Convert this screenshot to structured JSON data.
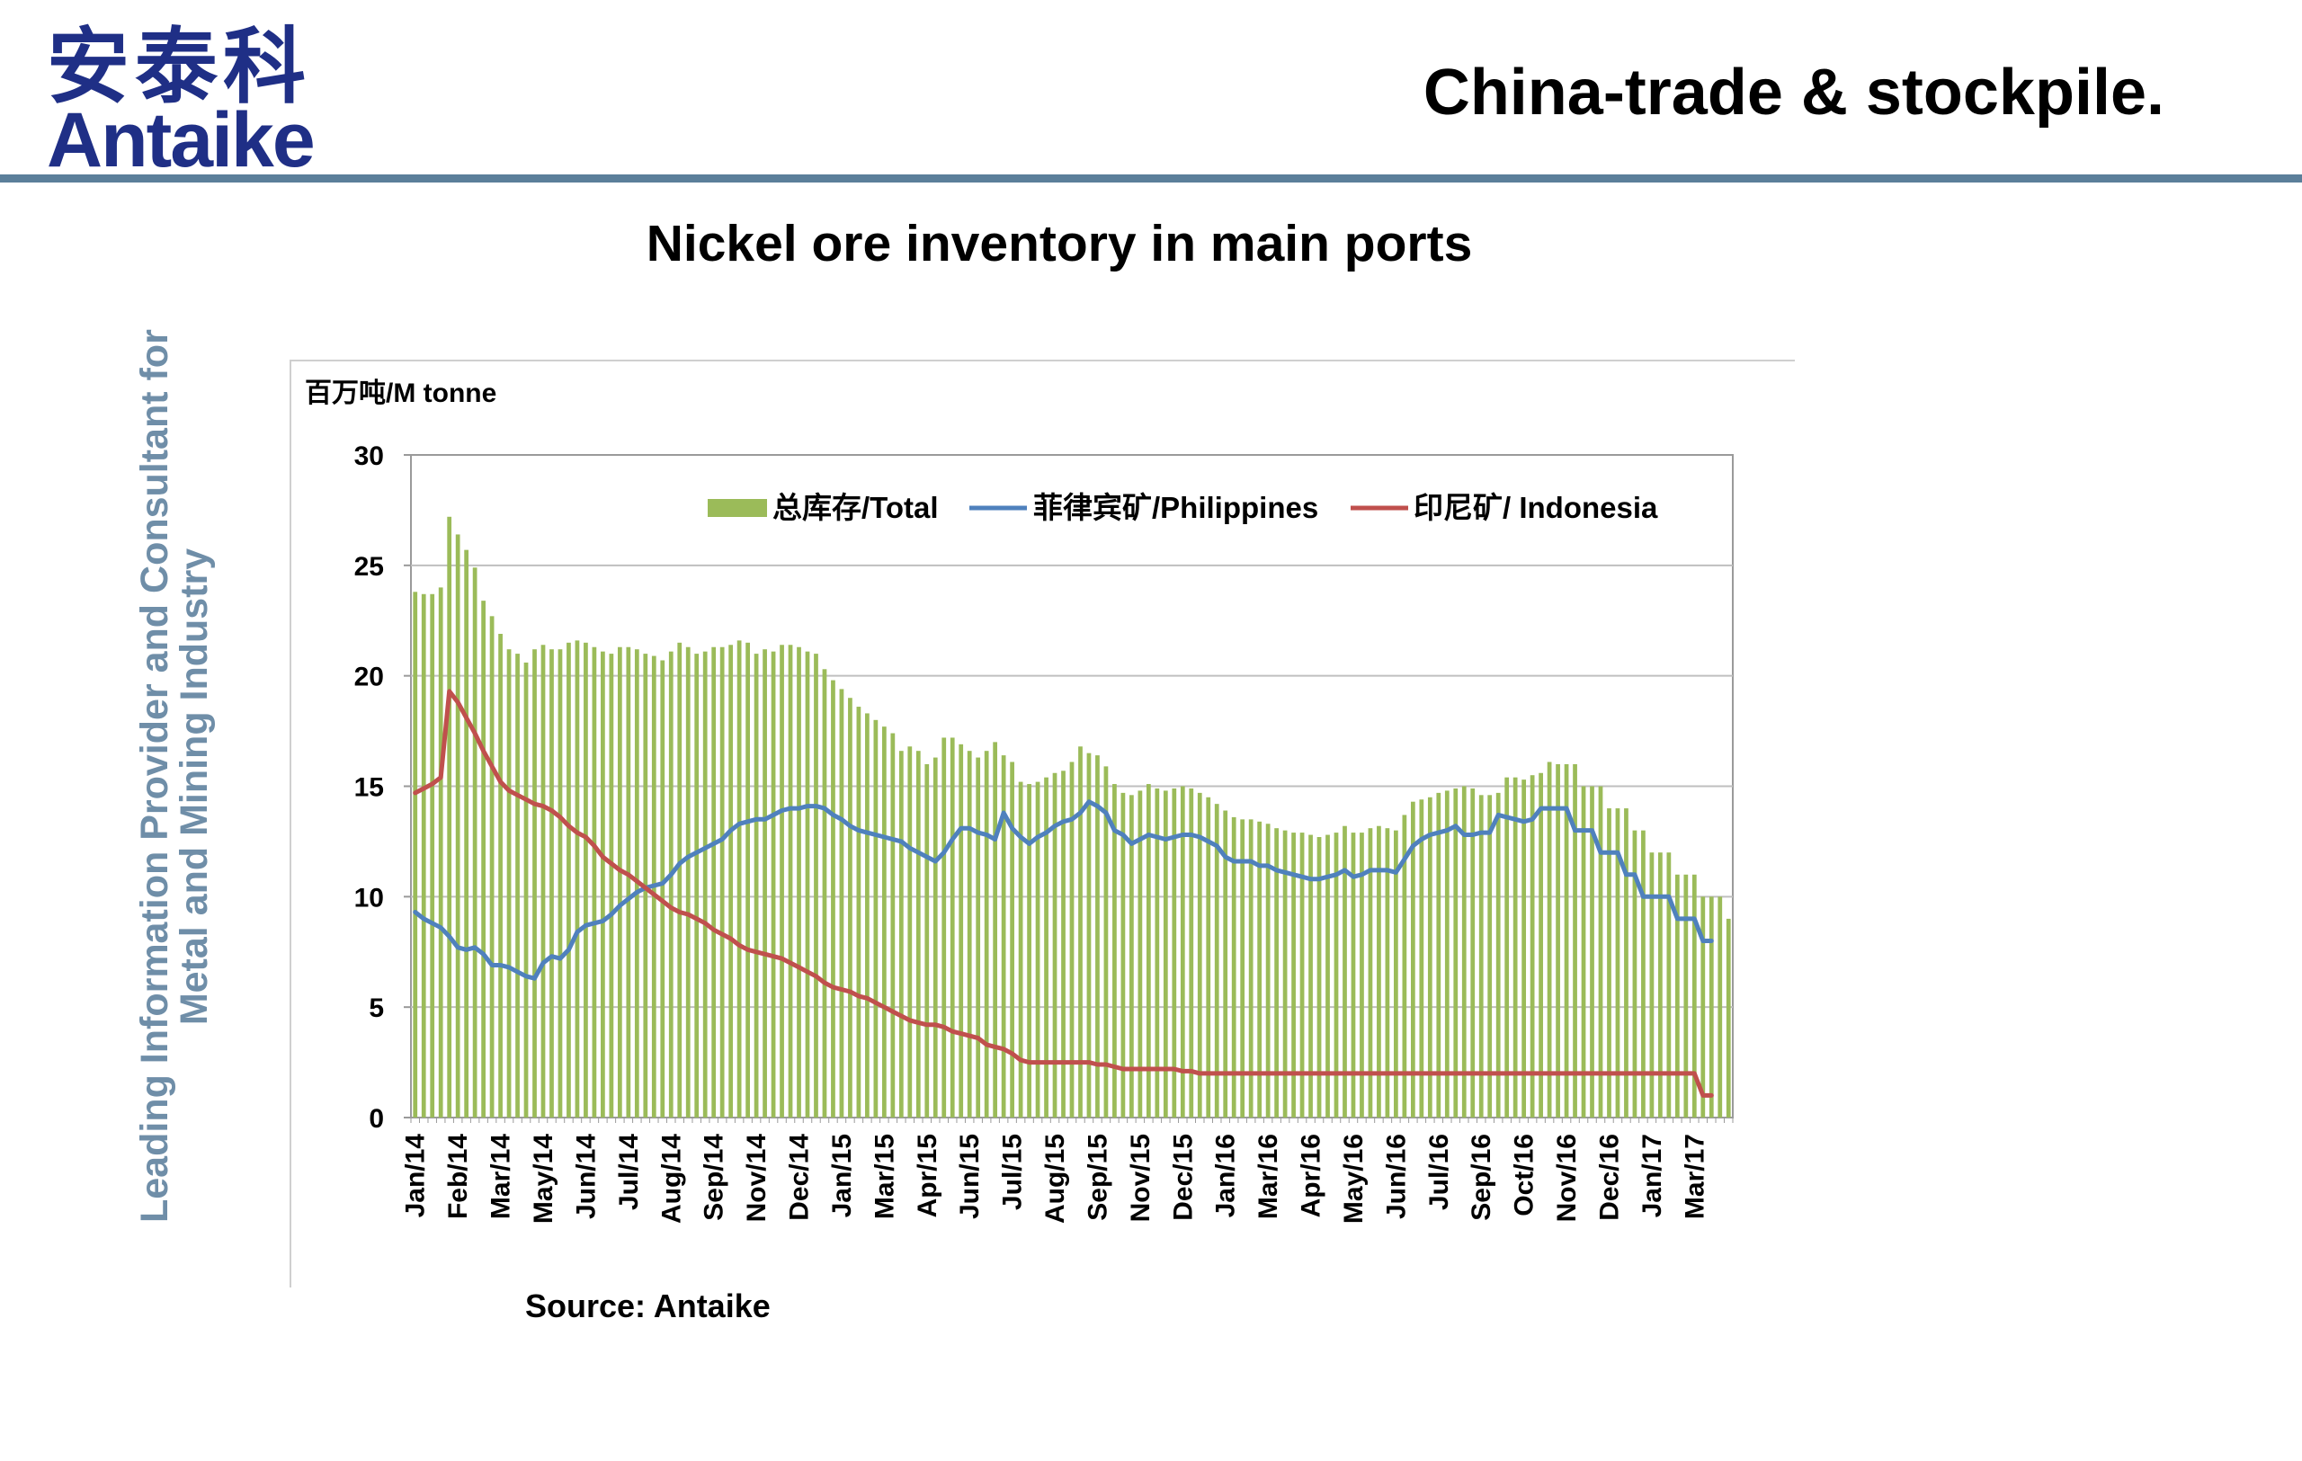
{
  "logo": {
    "cn": "安泰科",
    "en": "Antaike"
  },
  "header": {
    "title": "China-trade & stockpile."
  },
  "side_tagline": {
    "line1": "Leading Information Provider and Consultant for",
    "line2": "Metal and Mining Industry"
  },
  "slide": {
    "title": "Nickel ore  inventory in main ports"
  },
  "source": "Source: Antaike",
  "colors": {
    "total": "#9bbb59",
    "philippines": "#4f81bd",
    "indonesia": "#c0504d",
    "brand": "#1f2f86",
    "rule": "#5b7f9a"
  },
  "chart_data": {
    "type": "bar",
    "unit_label": "百万吨/M tonne",
    "ylim": [
      0,
      30
    ],
    "yticks": [
      0,
      5,
      10,
      15,
      20,
      25,
      30
    ],
    "grid": true,
    "legend_position": "top-right",
    "legend": [
      "总库存/Total",
      "菲律宾矿/Philippines",
      "印尼矿/ Indonesia"
    ],
    "x_tick_labels": [
      "Jan/14",
      "Feb/14",
      "Mar/14",
      "May/14",
      "Jun/14",
      "Jul/14",
      "Aug/14",
      "Sep/14",
      "Nov/14",
      "Dec/14",
      "Jan/15",
      "Mar/15",
      "Apr/15",
      "Jun/15",
      "Jul/15",
      "Aug/15",
      "Sep/15",
      "Nov/15",
      "Dec/15",
      "Jan/16",
      "Mar/16",
      "Apr/16",
      "May/16",
      "Jun/16",
      "Jul/16",
      "Sep/16",
      "Oct/16",
      "Nov/16",
      "Dec/16",
      "Jan/17",
      "Mar/17"
    ],
    "x_tick_positions": [
      0,
      5,
      10,
      15,
      20,
      25,
      30,
      35,
      40,
      45,
      50,
      55,
      60,
      65,
      70,
      75,
      80,
      85,
      90,
      95,
      100,
      105,
      110,
      115,
      120,
      125,
      130,
      135,
      140,
      145,
      150
    ],
    "series": [
      {
        "name": "总库存/Total",
        "kind": "bar",
        "values": [
          23.8,
          23.7,
          23.7,
          24.0,
          27.2,
          26.4,
          25.7,
          24.9,
          23.4,
          22.7,
          21.9,
          21.2,
          21.0,
          20.6,
          21.2,
          21.4,
          21.2,
          21.2,
          21.5,
          21.6,
          21.5,
          21.3,
          21.1,
          21.0,
          21.3,
          21.3,
          21.2,
          21.0,
          20.9,
          20.7,
          21.1,
          21.5,
          21.3,
          21.0,
          21.1,
          21.3,
          21.3,
          21.4,
          21.6,
          21.5,
          21.0,
          21.2,
          21.1,
          21.4,
          21.4,
          21.3,
          21.1,
          21.0,
          20.3,
          19.8,
          19.4,
          19.0,
          18.6,
          18.3,
          18.0,
          17.7,
          17.4,
          16.6,
          16.8,
          16.6,
          16.0,
          16.3,
          17.2,
          17.2,
          16.9,
          16.6,
          16.3,
          16.6,
          17.0,
          16.4,
          16.1,
          15.2,
          15.1,
          15.2,
          15.4,
          15.6,
          15.7,
          16.1,
          16.8,
          16.5,
          16.4,
          15.9,
          15.1,
          14.7,
          14.6,
          14.8,
          15.1,
          14.9,
          14.8,
          14.9,
          15.0,
          14.9,
          14.7,
          14.5,
          14.2,
          13.9,
          13.6,
          13.5,
          13.5,
          13.4,
          13.3,
          13.1,
          13.0,
          12.9,
          12.9,
          12.8,
          12.7,
          12.8,
          12.9,
          13.2,
          12.9,
          12.9,
          13.1,
          13.2,
          13.1,
          13.0,
          13.7,
          14.3,
          14.4,
          14.5,
          14.7,
          14.8,
          14.9,
          15.0,
          14.9,
          14.6,
          14.6,
          14.7,
          15.4,
          15.4,
          15.3,
          15.5,
          15.6,
          16.1,
          16.0,
          16.0,
          16.0,
          15.0,
          15.0,
          15.0,
          14.0,
          14.0,
          14.0,
          13.0,
          13.0,
          12.0,
          12.0,
          12.0,
          11.0,
          11.0,
          11.0,
          10.0,
          10.0,
          10.0,
          9.0
        ]
      },
      {
        "name": "菲律宾矿/Philippines",
        "kind": "line",
        "values": [
          9.3,
          9.0,
          8.8,
          8.6,
          8.2,
          7.7,
          7.6,
          7.7,
          7.4,
          6.9,
          6.9,
          6.8,
          6.6,
          6.4,
          6.3,
          7.0,
          7.3,
          7.2,
          7.6,
          8.4,
          8.7,
          8.8,
          8.9,
          9.2,
          9.6,
          9.9,
          10.2,
          10.4,
          10.5,
          10.6,
          11.0,
          11.5,
          11.8,
          12.0,
          12.2,
          12.4,
          12.6,
          13.0,
          13.3,
          13.4,
          13.5,
          13.5,
          13.7,
          13.9,
          14.0,
          14.0,
          14.1,
          14.1,
          14.0,
          13.7,
          13.5,
          13.2,
          13.0,
          12.9,
          12.8,
          12.7,
          12.6,
          12.5,
          12.2,
          12.0,
          11.8,
          11.6,
          12.0,
          12.6,
          13.1,
          13.1,
          12.9,
          12.8,
          12.6,
          13.8,
          13.1,
          12.7,
          12.4,
          12.7,
          12.9,
          13.2,
          13.4,
          13.5,
          13.8,
          14.3,
          14.1,
          13.8,
          13.0,
          12.8,
          12.4,
          12.6,
          12.8,
          12.7,
          12.6,
          12.7,
          12.8,
          12.8,
          12.7,
          12.5,
          12.3,
          11.8,
          11.6,
          11.6,
          11.6,
          11.4,
          11.4,
          11.2,
          11.1,
          11.0,
          10.9,
          10.8,
          10.8,
          10.9,
          11.0,
          11.2,
          10.9,
          11.0,
          11.2,
          11.2,
          11.2,
          11.1,
          11.7,
          12.3,
          12.6,
          12.8,
          12.9,
          13.0,
          13.2,
          12.8,
          12.8,
          12.9,
          12.9,
          13.7,
          13.6,
          13.5,
          13.4,
          13.5,
          14.0,
          14.0,
          14.0,
          14.0,
          13.0,
          13.0,
          13.0,
          12.0,
          12.0,
          12.0,
          11.0,
          11.0,
          10.0,
          10.0,
          10.0,
          10.0,
          9.0,
          9.0,
          9.0,
          8.0,
          8.0
        ]
      },
      {
        "name": "印尼矿/ Indonesia",
        "kind": "line",
        "values": [
          14.7,
          14.9,
          15.1,
          15.4,
          19.3,
          18.8,
          18.1,
          17.4,
          16.6,
          15.9,
          15.2,
          14.8,
          14.6,
          14.4,
          14.2,
          14.1,
          13.9,
          13.6,
          13.2,
          12.9,
          12.7,
          12.3,
          11.8,
          11.5,
          11.2,
          11.0,
          10.7,
          10.4,
          10.1,
          9.8,
          9.5,
          9.3,
          9.2,
          9.0,
          8.8,
          8.5,
          8.3,
          8.1,
          7.8,
          7.6,
          7.5,
          7.4,
          7.3,
          7.2,
          7.0,
          6.8,
          6.6,
          6.4,
          6.1,
          5.9,
          5.8,
          5.7,
          5.5,
          5.4,
          5.2,
          5.0,
          4.8,
          4.6,
          4.4,
          4.3,
          4.2,
          4.2,
          4.1,
          3.9,
          3.8,
          3.7,
          3.6,
          3.3,
          3.2,
          3.1,
          2.9,
          2.6,
          2.5,
          2.5,
          2.5,
          2.5,
          2.5,
          2.5,
          2.5,
          2.5,
          2.4,
          2.4,
          2.3,
          2.2,
          2.2,
          2.2,
          2.2,
          2.2,
          2.2,
          2.2,
          2.1,
          2.1,
          2.0,
          2.0,
          2.0,
          2.0,
          2.0,
          2.0,
          2.0,
          2.0,
          2.0,
          2.0,
          2.0,
          2.0,
          2.0,
          2.0,
          2.0,
          2.0,
          2.0,
          2.0,
          2.0,
          2.0,
          2.0,
          2.0,
          2.0,
          2.0,
          2.0,
          2.0,
          2.0,
          2.0,
          2.0,
          2.0,
          2.0,
          2.0,
          2.0,
          2.0,
          2.0,
          2.0,
          2.0,
          2.0,
          2.0,
          2.0,
          2.0,
          2.0,
          2.0,
          2.0,
          2.0,
          2.0,
          2.0,
          2.0,
          2.0,
          2.0,
          2.0,
          2.0,
          2.0,
          2.0,
          2.0,
          2.0,
          2.0,
          2.0,
          2.0,
          1.0,
          1.0
        ]
      }
    ]
  }
}
